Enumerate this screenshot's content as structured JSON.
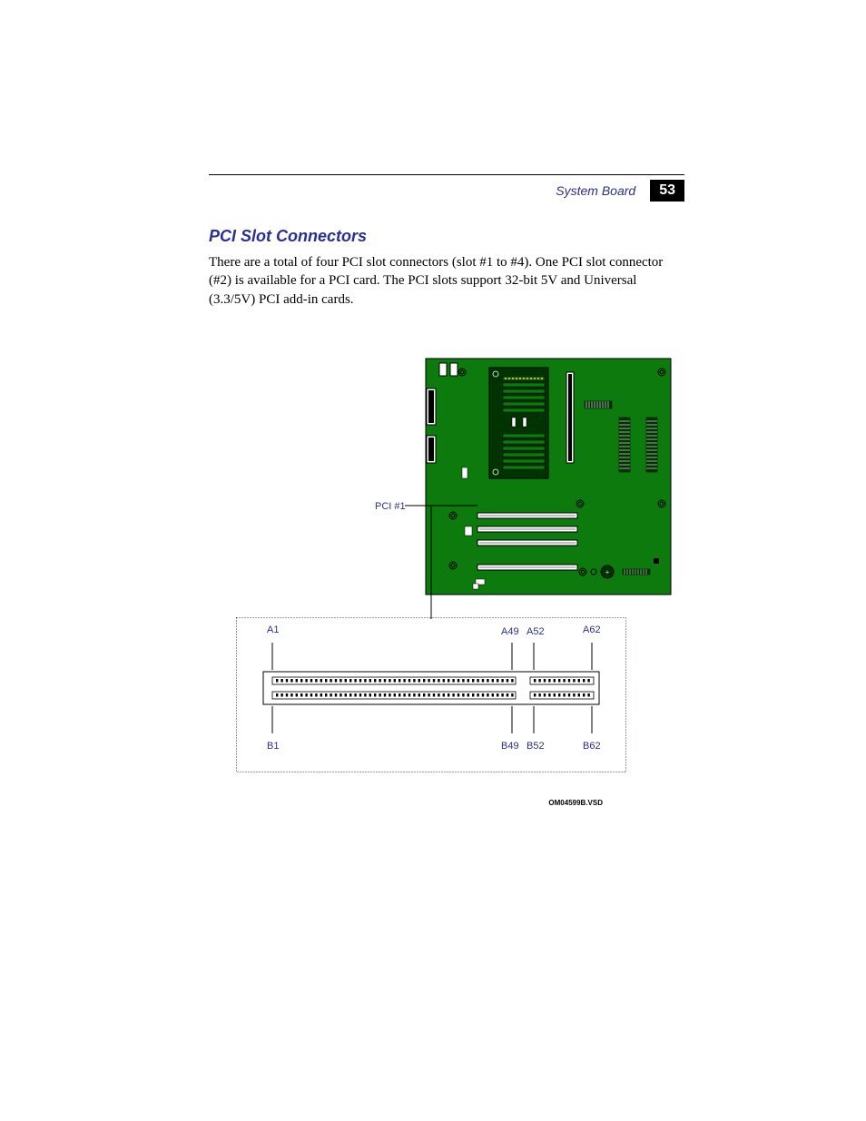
{
  "header": {
    "title": "System Board",
    "page_number": "53"
  },
  "section": {
    "heading": "PCI Slot Connectors",
    "body": "There are a total of four PCI slot connectors (slot #1 to #4). One PCI slot connector (#2) is available for a PCI card. The PCI slots support 32-bit 5V and Universal (3.3/5V) PCI add-in cards."
  },
  "figure": {
    "callout_label": "PCI #1",
    "figure_id": "OM04599B.VSD",
    "pin_labels": {
      "a_start": "A1",
      "a_gap_left": "A49",
      "a_gap_right": "A52",
      "a_end": "A62",
      "b_start": "B1",
      "b_gap_left": "B49",
      "b_gap_right": "B52",
      "b_end": "B62"
    },
    "board": {
      "bg_color": "#0c7a0c",
      "dark_assembly": "#003300",
      "outline": "#000000",
      "dotted_frame": "#2b2f8f"
    }
  }
}
